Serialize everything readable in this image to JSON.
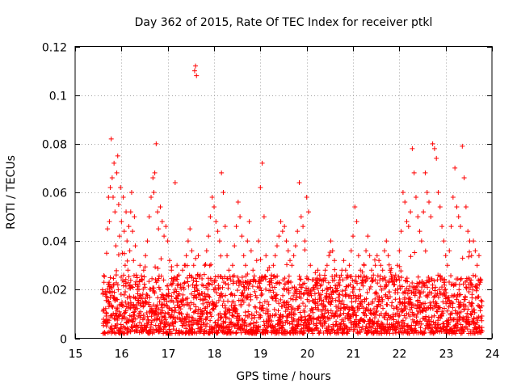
{
  "chart_data": {
    "type": "scatter",
    "title": "Day 362 of 2015, Rate Of TEC Index for receiver ptkl",
    "xlabel": "GPS time / hours",
    "ylabel": "ROTI / TECUs",
    "xlim": [
      15,
      24
    ],
    "ylim": [
      0,
      0.12
    ],
    "xticks": [
      15,
      16,
      17,
      18,
      19,
      20,
      21,
      22,
      23,
      24
    ],
    "yticks": [
      0,
      0.02,
      0.04,
      0.06,
      0.08,
      0.1,
      0.12
    ],
    "xtick_labels": [
      "15",
      "16",
      "17",
      "18",
      "19",
      "20",
      "21",
      "22",
      "23",
      "24"
    ],
    "ytick_labels": [
      "0",
      "0.02",
      "0.04",
      "0.06",
      "0.08",
      "0.1",
      "0.12"
    ],
    "grid": true,
    "marker": "+",
    "color": "#ff0000",
    "series": [
      {
        "name": "ROTI",
        "points": [
          [
            15.62,
            0.012
          ],
          [
            15.65,
            0.018
          ],
          [
            15.68,
            0.035
          ],
          [
            15.7,
            0.045
          ],
          [
            15.72,
            0.058
          ],
          [
            15.74,
            0.048
          ],
          [
            15.76,
            0.062
          ],
          [
            15.78,
            0.082
          ],
          [
            15.8,
            0.066
          ],
          [
            15.82,
            0.058
          ],
          [
            15.84,
            0.072
          ],
          [
            15.86,
            0.052
          ],
          [
            15.88,
            0.038
          ],
          [
            15.9,
            0.068
          ],
          [
            15.92,
            0.075
          ],
          [
            15.94,
            0.055
          ],
          [
            15.96,
            0.042
          ],
          [
            15.98,
            0.062
          ],
          [
            16.0,
            0.048
          ],
          [
            16.02,
            0.035
          ],
          [
            16.04,
            0.058
          ],
          [
            16.06,
            0.044
          ],
          [
            16.08,
            0.03
          ],
          [
            16.1,
            0.052
          ],
          [
            16.12,
            0.04
          ],
          [
            16.14,
            0.028
          ],
          [
            16.16,
            0.046
          ],
          [
            16.18,
            0.036
          ],
          [
            16.2,
            0.052
          ],
          [
            16.22,
            0.06
          ],
          [
            16.24,
            0.044
          ],
          [
            16.26,
            0.032
          ],
          [
            16.28,
            0.05
          ],
          [
            16.3,
            0.038
          ],
          [
            16.32,
            0.026
          ],
          [
            16.36,
            0.022
          ],
          [
            16.4,
            0.03
          ],
          [
            16.44,
            0.024
          ],
          [
            16.48,
            0.028
          ],
          [
            16.52,
            0.034
          ],
          [
            16.56,
            0.04
          ],
          [
            16.6,
            0.05
          ],
          [
            16.64,
            0.058
          ],
          [
            16.68,
            0.066
          ],
          [
            16.7,
            0.06
          ],
          [
            16.72,
            0.068
          ],
          [
            16.75,
            0.08
          ],
          [
            16.78,
            0.052
          ],
          [
            16.8,
            0.045
          ],
          [
            16.84,
            0.054
          ],
          [
            16.88,
            0.048
          ],
          [
            16.92,
            0.042
          ],
          [
            16.96,
            0.046
          ],
          [
            17.0,
            0.04
          ],
          [
            17.04,
            0.032
          ],
          [
            17.08,
            0.028
          ],
          [
            17.12,
            0.024
          ],
          [
            17.16,
            0.064
          ],
          [
            17.2,
            0.03
          ],
          [
            17.24,
            0.026
          ],
          [
            17.28,
            0.022
          ],
          [
            17.32,
            0.028
          ],
          [
            17.36,
            0.03
          ],
          [
            17.4,
            0.034
          ],
          [
            17.44,
            0.04
          ],
          [
            17.48,
            0.045
          ],
          [
            17.52,
            0.036
          ],
          [
            17.56,
            0.03
          ],
          [
            17.58,
            0.11
          ],
          [
            17.6,
            0.112
          ],
          [
            17.62,
            0.108
          ],
          [
            17.66,
            0.034
          ],
          [
            17.7,
            0.026
          ],
          [
            17.74,
            0.022
          ],
          [
            17.8,
            0.03
          ],
          [
            17.84,
            0.036
          ],
          [
            17.88,
            0.042
          ],
          [
            17.92,
            0.05
          ],
          [
            17.96,
            0.058
          ],
          [
            18.0,
            0.054
          ],
          [
            18.04,
            0.048
          ],
          [
            18.08,
            0.044
          ],
          [
            18.12,
            0.04
          ],
          [
            18.16,
            0.068
          ],
          [
            18.2,
            0.06
          ],
          [
            18.24,
            0.046
          ],
          [
            18.28,
            0.034
          ],
          [
            18.32,
            0.028
          ],
          [
            18.36,
            0.024
          ],
          [
            18.4,
            0.03
          ],
          [
            18.44,
            0.038
          ],
          [
            18.48,
            0.046
          ],
          [
            18.52,
            0.056
          ],
          [
            18.56,
            0.05
          ],
          [
            18.6,
            0.042
          ],
          [
            18.64,
            0.034
          ],
          [
            18.68,
            0.03
          ],
          [
            18.72,
            0.04
          ],
          [
            18.76,
            0.048
          ],
          [
            18.8,
            0.036
          ],
          [
            18.84,
            0.028
          ],
          [
            18.88,
            0.024
          ],
          [
            18.92,
            0.032
          ],
          [
            18.96,
            0.04
          ],
          [
            19.0,
            0.062
          ],
          [
            19.04,
            0.072
          ],
          [
            19.08,
            0.05
          ],
          [
            19.12,
            0.034
          ],
          [
            19.16,
            0.028
          ],
          [
            19.2,
            0.022
          ],
          [
            19.24,
            0.026
          ],
          [
            19.28,
            0.03
          ],
          [
            19.32,
            0.034
          ],
          [
            19.36,
            0.038
          ],
          [
            19.4,
            0.042
          ],
          [
            19.44,
            0.048
          ],
          [
            19.48,
            0.044
          ],
          [
            19.52,
            0.046
          ],
          [
            19.56,
            0.04
          ],
          [
            19.6,
            0.036
          ],
          [
            19.64,
            0.032
          ],
          [
            19.68,
            0.03
          ],
          [
            19.72,
            0.034
          ],
          [
            19.76,
            0.038
          ],
          [
            19.8,
            0.044
          ],
          [
            19.84,
            0.064
          ],
          [
            19.88,
            0.05
          ],
          [
            19.92,
            0.046
          ],
          [
            19.96,
            0.04
          ],
          [
            20.0,
            0.058
          ],
          [
            20.04,
            0.052
          ],
          [
            20.08,
            0.03
          ],
          [
            20.12,
            0.024
          ],
          [
            20.16,
            0.02
          ],
          [
            20.2,
            0.024
          ],
          [
            20.24,
            0.028
          ],
          [
            20.28,
            0.026
          ],
          [
            20.32,
            0.022
          ],
          [
            20.36,
            0.024
          ],
          [
            20.4,
            0.028
          ],
          [
            20.44,
            0.03
          ],
          [
            20.48,
            0.034
          ],
          [
            20.52,
            0.04
          ],
          [
            20.56,
            0.036
          ],
          [
            20.6,
            0.032
          ],
          [
            20.64,
            0.026
          ],
          [
            20.68,
            0.022
          ],
          [
            20.72,
            0.024
          ],
          [
            20.76,
            0.028
          ],
          [
            20.8,
            0.032
          ],
          [
            20.84,
            0.028
          ],
          [
            20.88,
            0.026
          ],
          [
            20.92,
            0.03
          ],
          [
            20.96,
            0.036
          ],
          [
            21.0,
            0.042
          ],
          [
            21.04,
            0.054
          ],
          [
            21.08,
            0.048
          ],
          [
            21.12,
            0.034
          ],
          [
            21.16,
            0.028
          ],
          [
            21.2,
            0.024
          ],
          [
            21.24,
            0.03
          ],
          [
            21.28,
            0.036
          ],
          [
            21.32,
            0.042
          ],
          [
            21.36,
            0.034
          ],
          [
            21.4,
            0.028
          ],
          [
            21.44,
            0.026
          ],
          [
            21.48,
            0.03
          ],
          [
            21.52,
            0.034
          ],
          [
            21.56,
            0.032
          ],
          [
            21.6,
            0.03
          ],
          [
            21.64,
            0.028
          ],
          [
            21.68,
            0.036
          ],
          [
            21.72,
            0.04
          ],
          [
            21.76,
            0.034
          ],
          [
            21.8,
            0.028
          ],
          [
            21.84,
            0.024
          ],
          [
            21.88,
            0.022
          ],
          [
            21.92,
            0.026
          ],
          [
            21.96,
            0.03
          ],
          [
            22.0,
            0.036
          ],
          [
            22.04,
            0.044
          ],
          [
            22.08,
            0.06
          ],
          [
            22.12,
            0.056
          ],
          [
            22.16,
            0.048
          ],
          [
            22.2,
            0.046
          ],
          [
            22.24,
            0.052
          ],
          [
            22.28,
            0.078
          ],
          [
            22.32,
            0.068
          ],
          [
            22.36,
            0.058
          ],
          [
            22.4,
            0.05
          ],
          [
            22.44,
            0.044
          ],
          [
            22.48,
            0.04
          ],
          [
            22.52,
            0.052
          ],
          [
            22.56,
            0.068
          ],
          [
            22.6,
            0.06
          ],
          [
            22.64,
            0.056
          ],
          [
            22.68,
            0.05
          ],
          [
            22.72,
            0.08
          ],
          [
            22.76,
            0.078
          ],
          [
            22.8,
            0.074
          ],
          [
            22.84,
            0.06
          ],
          [
            22.88,
            0.054
          ],
          [
            22.92,
            0.046
          ],
          [
            22.96,
            0.04
          ],
          [
            23.0,
            0.034
          ],
          [
            23.04,
            0.03
          ],
          [
            23.08,
            0.036
          ],
          [
            23.12,
            0.046
          ],
          [
            23.16,
            0.058
          ],
          [
            23.2,
            0.07
          ],
          [
            23.24,
            0.054
          ],
          [
            23.28,
            0.05
          ],
          [
            23.32,
            0.046
          ],
          [
            23.36,
            0.079
          ],
          [
            23.4,
            0.066
          ],
          [
            23.44,
            0.054
          ],
          [
            23.48,
            0.044
          ],
          [
            23.52,
            0.04
          ],
          [
            23.56,
            0.034
          ],
          [
            23.6,
            0.04
          ],
          [
            23.64,
            0.036
          ],
          [
            23.68,
            0.03
          ],
          [
            23.72,
            0.034
          ],
          [
            23.76,
            0.024
          ]
        ],
        "noise_band": {
          "x_start": 15.6,
          "x_end": 23.78,
          "step": 0.02,
          "per_step": 6,
          "min": 0.002,
          "max": 0.026,
          "seed": 362
        }
      }
    ]
  }
}
